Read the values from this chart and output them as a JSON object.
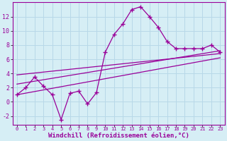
{
  "background_color": "#d6eef5",
  "grid_color": "#b8d8e8",
  "line_color": "#990099",
  "xlim": [
    -0.5,
    23.5
  ],
  "ylim": [
    -3.2,
    14.0
  ],
  "xlabel": "Windchill (Refroidissement éolien,°C)",
  "xlabel_fontsize": 6.5,
  "xtick_labels": [
    "0",
    "1",
    "2",
    "3",
    "4",
    "5",
    "6",
    "7",
    "8",
    "9",
    "10",
    "11",
    "12",
    "13",
    "14",
    "15",
    "16",
    "17",
    "18",
    "19",
    "20",
    "21",
    "22",
    "23"
  ],
  "yticks": [
    -2,
    0,
    2,
    4,
    6,
    8,
    10,
    12
  ],
  "curve1_x": [
    0,
    1,
    2,
    3,
    4,
    5,
    6,
    7,
    8,
    9,
    10,
    11,
    12,
    13,
    14,
    15,
    16,
    17,
    18,
    19,
    20,
    21,
    22,
    23
  ],
  "curve1_y": [
    1.0,
    2.0,
    3.5,
    2.2,
    1.0,
    -2.5,
    1.2,
    1.5,
    -0.3,
    1.3,
    7.0,
    9.5,
    11.0,
    13.0,
    13.4,
    12.0,
    10.5,
    8.5,
    7.5,
    7.5,
    7.5,
    7.5,
    8.0,
    7.0
  ],
  "line1_x": [
    0,
    23
  ],
  "line1_y": [
    1.0,
    6.2
  ],
  "line2_x": [
    0,
    23
  ],
  "line2_y": [
    2.5,
    7.2
  ],
  "line3_x": [
    0,
    23
  ],
  "line3_y": [
    3.8,
    6.8
  ]
}
